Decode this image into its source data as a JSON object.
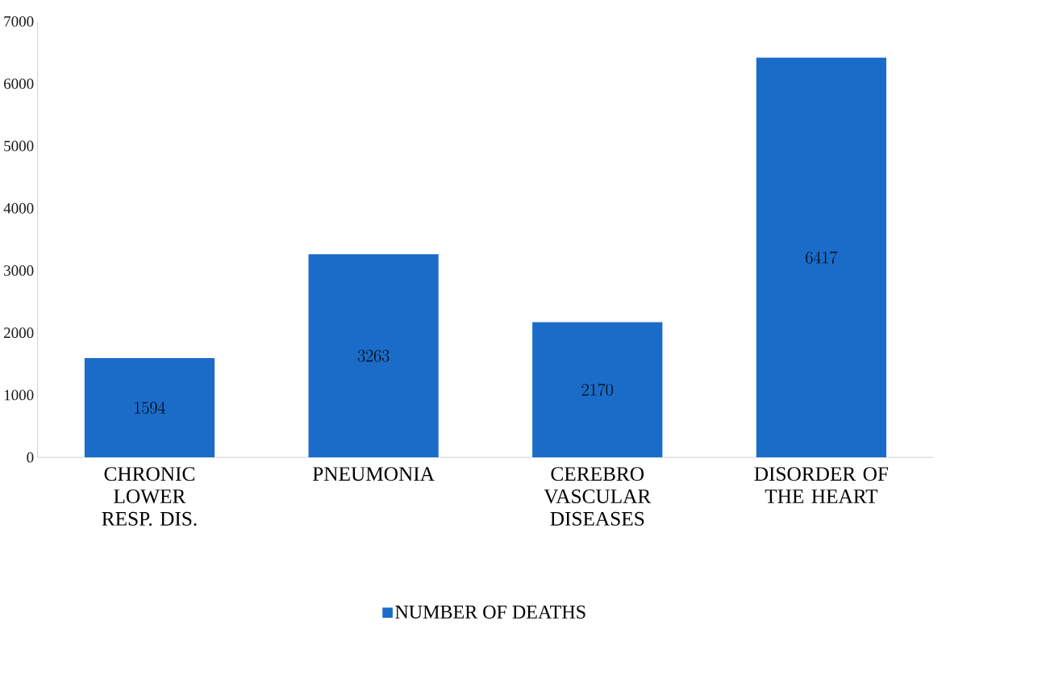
{
  "chart_data": {
    "type": "bar",
    "categories": [
      "CHRONIC LOWER RESP. DIS.",
      "PNEUMONIA",
      "CEREBRO VASCULAR DISEASES",
      "DISORDER OF THE HEART"
    ],
    "series": [
      {
        "name": "NUMBER OF DEATHS",
        "color": "#1a6cc8",
        "values": [
          1594,
          3263,
          2170,
          6417
        ]
      }
    ],
    "ylim": [
      0,
      7000
    ],
    "yticks": [
      0,
      1000,
      2000,
      3000,
      4000,
      5000,
      6000,
      7000
    ],
    "data_labels": true,
    "legend": "bottom",
    "grid": false
  }
}
